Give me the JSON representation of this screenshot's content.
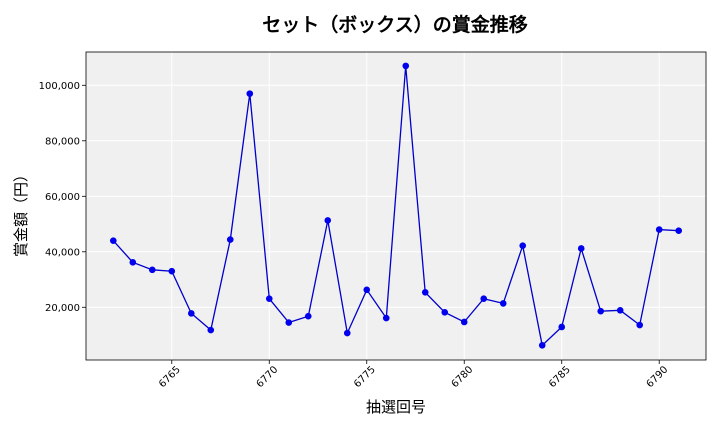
{
  "chart_data": {
    "type": "line",
    "title": "セット（ボックス）の賞金推移",
    "xlabel": "抽選回号",
    "ylabel": "賞金額（円）",
    "xlim": [
      6760.6,
      6792.4
    ],
    "ylim": [
      1000,
      112000
    ],
    "xticks": [
      6765,
      6770,
      6775,
      6780,
      6785,
      6790
    ],
    "yticks": [
      20000,
      40000,
      60000,
      80000,
      100000
    ],
    "xtick_labels": [
      "6765",
      "6770",
      "6775",
      "6780",
      "6785",
      "6790"
    ],
    "ytick_labels": [
      "20,000",
      "40,000",
      "60,000",
      "80,000",
      "100,000"
    ],
    "grid": true,
    "colors": {
      "line": "#0000cc",
      "marker": "#0000ee",
      "plot_bg": "#f0f0f0",
      "grid": "#ffffff"
    },
    "series": [
      {
        "x": [
          6762,
          6763,
          6764,
          6765,
          6766,
          6767,
          6768,
          6769,
          6770,
          6771,
          6772,
          6773,
          6774,
          6775,
          6776,
          6777,
          6778,
          6779,
          6780,
          6781,
          6782,
          6783,
          6784,
          6785,
          6786,
          6787,
          6788,
          6789,
          6790,
          6791
        ],
        "values": [
          44000,
          36200,
          33500,
          33000,
          17800,
          11800,
          44400,
          97000,
          23100,
          14500,
          16800,
          51300,
          10700,
          26300,
          16100,
          107000,
          25400,
          18200,
          14700,
          23100,
          21400,
          42200,
          6300,
          12900,
          41200,
          18600,
          18900,
          13600,
          48000,
          47600
        ]
      }
    ]
  }
}
